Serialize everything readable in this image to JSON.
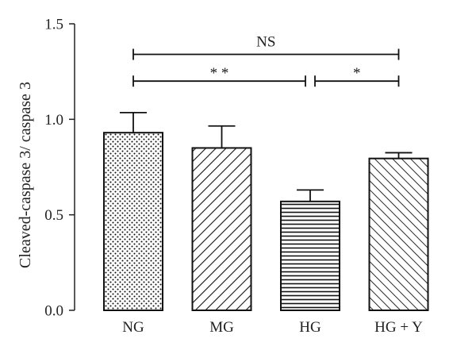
{
  "chart_data": {
    "type": "bar",
    "categories": [
      "NG",
      "MG",
      "HG",
      "HG + Y"
    ],
    "values": [
      0.93,
      0.85,
      0.57,
      0.795
    ],
    "errors": [
      0.105,
      0.115,
      0.06,
      0.03
    ],
    "patterns": [
      "dots",
      "diag-right",
      "horizontal",
      "diag-left"
    ],
    "ylabel": "Cleaved-caspase 3/ caspase 3",
    "xlabel": "",
    "ylim": [
      0,
      1.5
    ],
    "yticks": [
      "0.0",
      "0.5",
      "1.0",
      "1.5"
    ],
    "significance": [
      {
        "from": 0,
        "to": 3,
        "label": "NS",
        "level": 1.34
      },
      {
        "from": 0,
        "to": 2,
        "label": "**",
        "level": 1.2
      },
      {
        "from": 2,
        "to": 3,
        "label": "*",
        "level": 1.2
      }
    ],
    "grid": false,
    "colors": {
      "ink": "#111111",
      "background": "#ffffff"
    }
  }
}
